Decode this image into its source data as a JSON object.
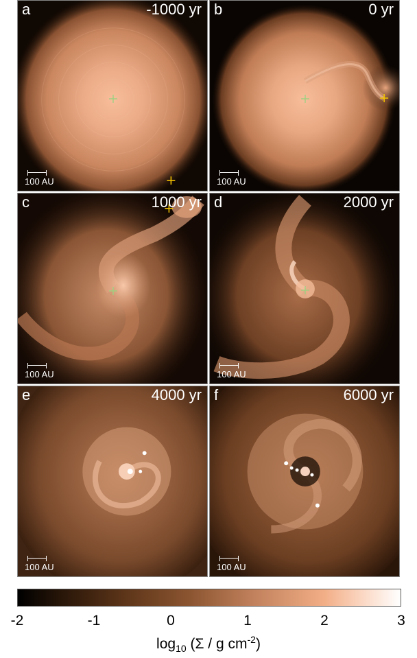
{
  "panels": [
    {
      "letter": "a",
      "time": "-1000 yr",
      "scale": "100 AU"
    },
    {
      "letter": "b",
      "time": "0 yr",
      "scale": "100 AU"
    },
    {
      "letter": "c",
      "time": "1000 yr",
      "scale": "100 AU"
    },
    {
      "letter": "d",
      "time": "2000 yr",
      "scale": "100 AU"
    },
    {
      "letter": "e",
      "time": "4000 yr",
      "scale": "100 AU"
    },
    {
      "letter": "f",
      "time": "6000 yr",
      "scale": "100 AU"
    }
  ],
  "colorbar": {
    "ticks": [
      "-2",
      "-1",
      "0",
      "1",
      "2",
      "3"
    ],
    "label_prefix": "log",
    "label_sub": "10",
    "label_mid": " (Σ / g cm",
    "label_sup": "-2",
    "label_suffix": ")"
  }
}
